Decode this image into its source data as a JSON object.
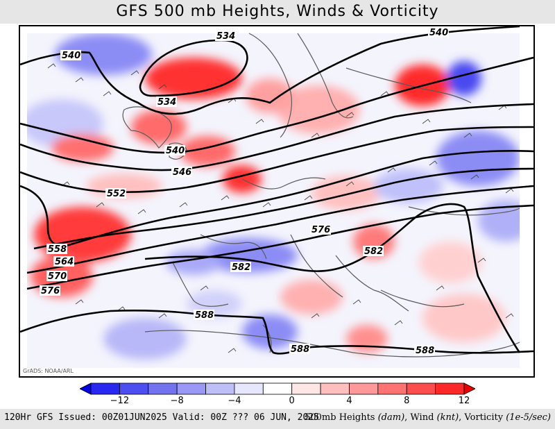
{
  "title": "GFS 500 mb Heights, Winds & Vorticity",
  "credit": "GrADS: NOAA/ARL",
  "footer": {
    "left": "120Hr GFS Issued: 00Z01JUN2025 Valid: 00Z ??? 06 JUN, 2025",
    "right_prefix": "500mb Heights ",
    "right_unit1": "(dam)",
    "right_mid1": ", Wind ",
    "right_unit2": "(knt)",
    "right_mid2": ", Vorticity ",
    "right_unit3": "(1e-5/sec)"
  },
  "colorbar": {
    "labels": [
      "−12",
      "−8",
      "−4",
      "0",
      "4",
      "8",
      "12"
    ],
    "colors": [
      "#0000e6",
      "#2828f0",
      "#4d4df0",
      "#7373f0",
      "#9999f5",
      "#bfbff8",
      "#e6e6fc",
      "#ffffff",
      "#ffe6e6",
      "#ffbfbf",
      "#ff9999",
      "#ff7373",
      "#ff4d4d",
      "#ff2828",
      "#e60000"
    ]
  },
  "contours": [
    "534",
    "534",
    "540",
    "540",
    "540",
    "546",
    "552",
    "558",
    "564",
    "570",
    "576",
    "576",
    "582",
    "582",
    "588",
    "588",
    "588"
  ],
  "field_colors": {
    "positive": "#ff2a2a",
    "negative": "#3a3af0",
    "coast": "#555555",
    "contour": "#000000"
  }
}
